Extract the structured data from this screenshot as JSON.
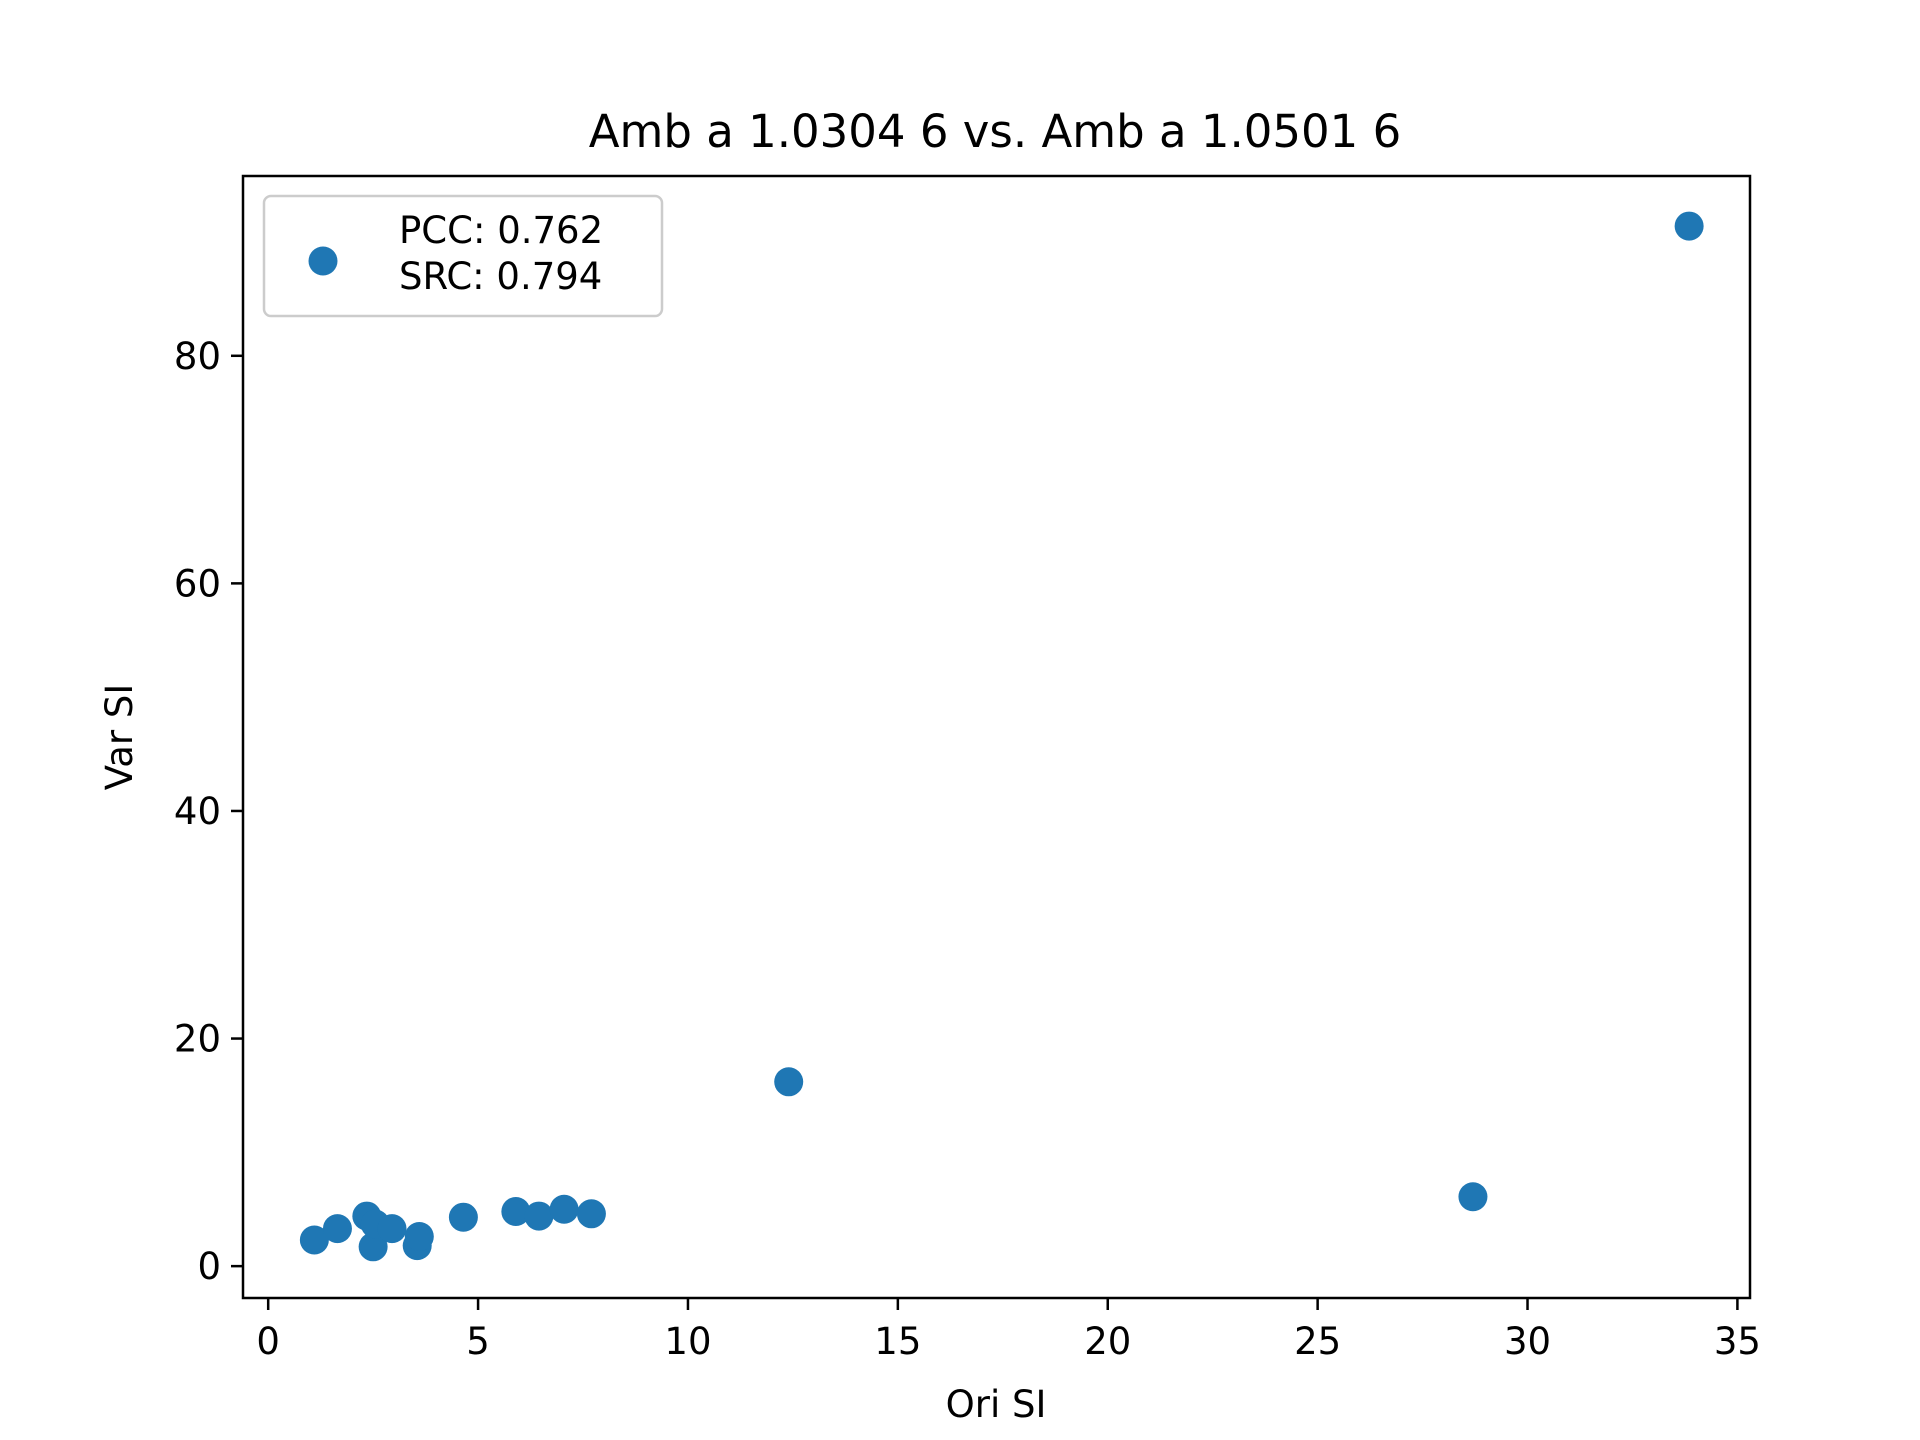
{
  "chart_data": {
    "type": "scatter",
    "title": "Amb a 1.0304 6 vs. Amb a 1.0501 6",
    "xlabel": "Ori SI",
    "ylabel": "Var SI",
    "xlim": [
      -0.6,
      35.3
    ],
    "ylim": [
      -2.8,
      95.8
    ],
    "xticks": [
      0,
      5,
      10,
      15,
      20,
      25,
      30,
      35
    ],
    "yticks": [
      0,
      20,
      40,
      60,
      80
    ],
    "grid": false,
    "legend": {
      "placement": "upper-left",
      "lines": [
        "PCC: 0.762",
        "SRC: 0.794"
      ]
    },
    "series": [
      {
        "color": "#1f77b4",
        "points": [
          {
            "x": 1.1,
            "y": 2.3
          },
          {
            "x": 1.65,
            "y": 3.3
          },
          {
            "x": 2.35,
            "y": 4.4
          },
          {
            "x": 2.5,
            "y": 1.7
          },
          {
            "x": 2.55,
            "y": 3.7
          },
          {
            "x": 2.95,
            "y": 3.3
          },
          {
            "x": 3.55,
            "y": 1.8
          },
          {
            "x": 3.6,
            "y": 2.6
          },
          {
            "x": 4.65,
            "y": 4.3
          },
          {
            "x": 5.9,
            "y": 4.8
          },
          {
            "x": 6.45,
            "y": 4.4
          },
          {
            "x": 7.05,
            "y": 5.0
          },
          {
            "x": 7.7,
            "y": 4.6
          },
          {
            "x": 12.4,
            "y": 16.2
          },
          {
            "x": 28.7,
            "y": 6.1
          },
          {
            "x": 33.85,
            "y": 91.4
          }
        ]
      }
    ]
  }
}
